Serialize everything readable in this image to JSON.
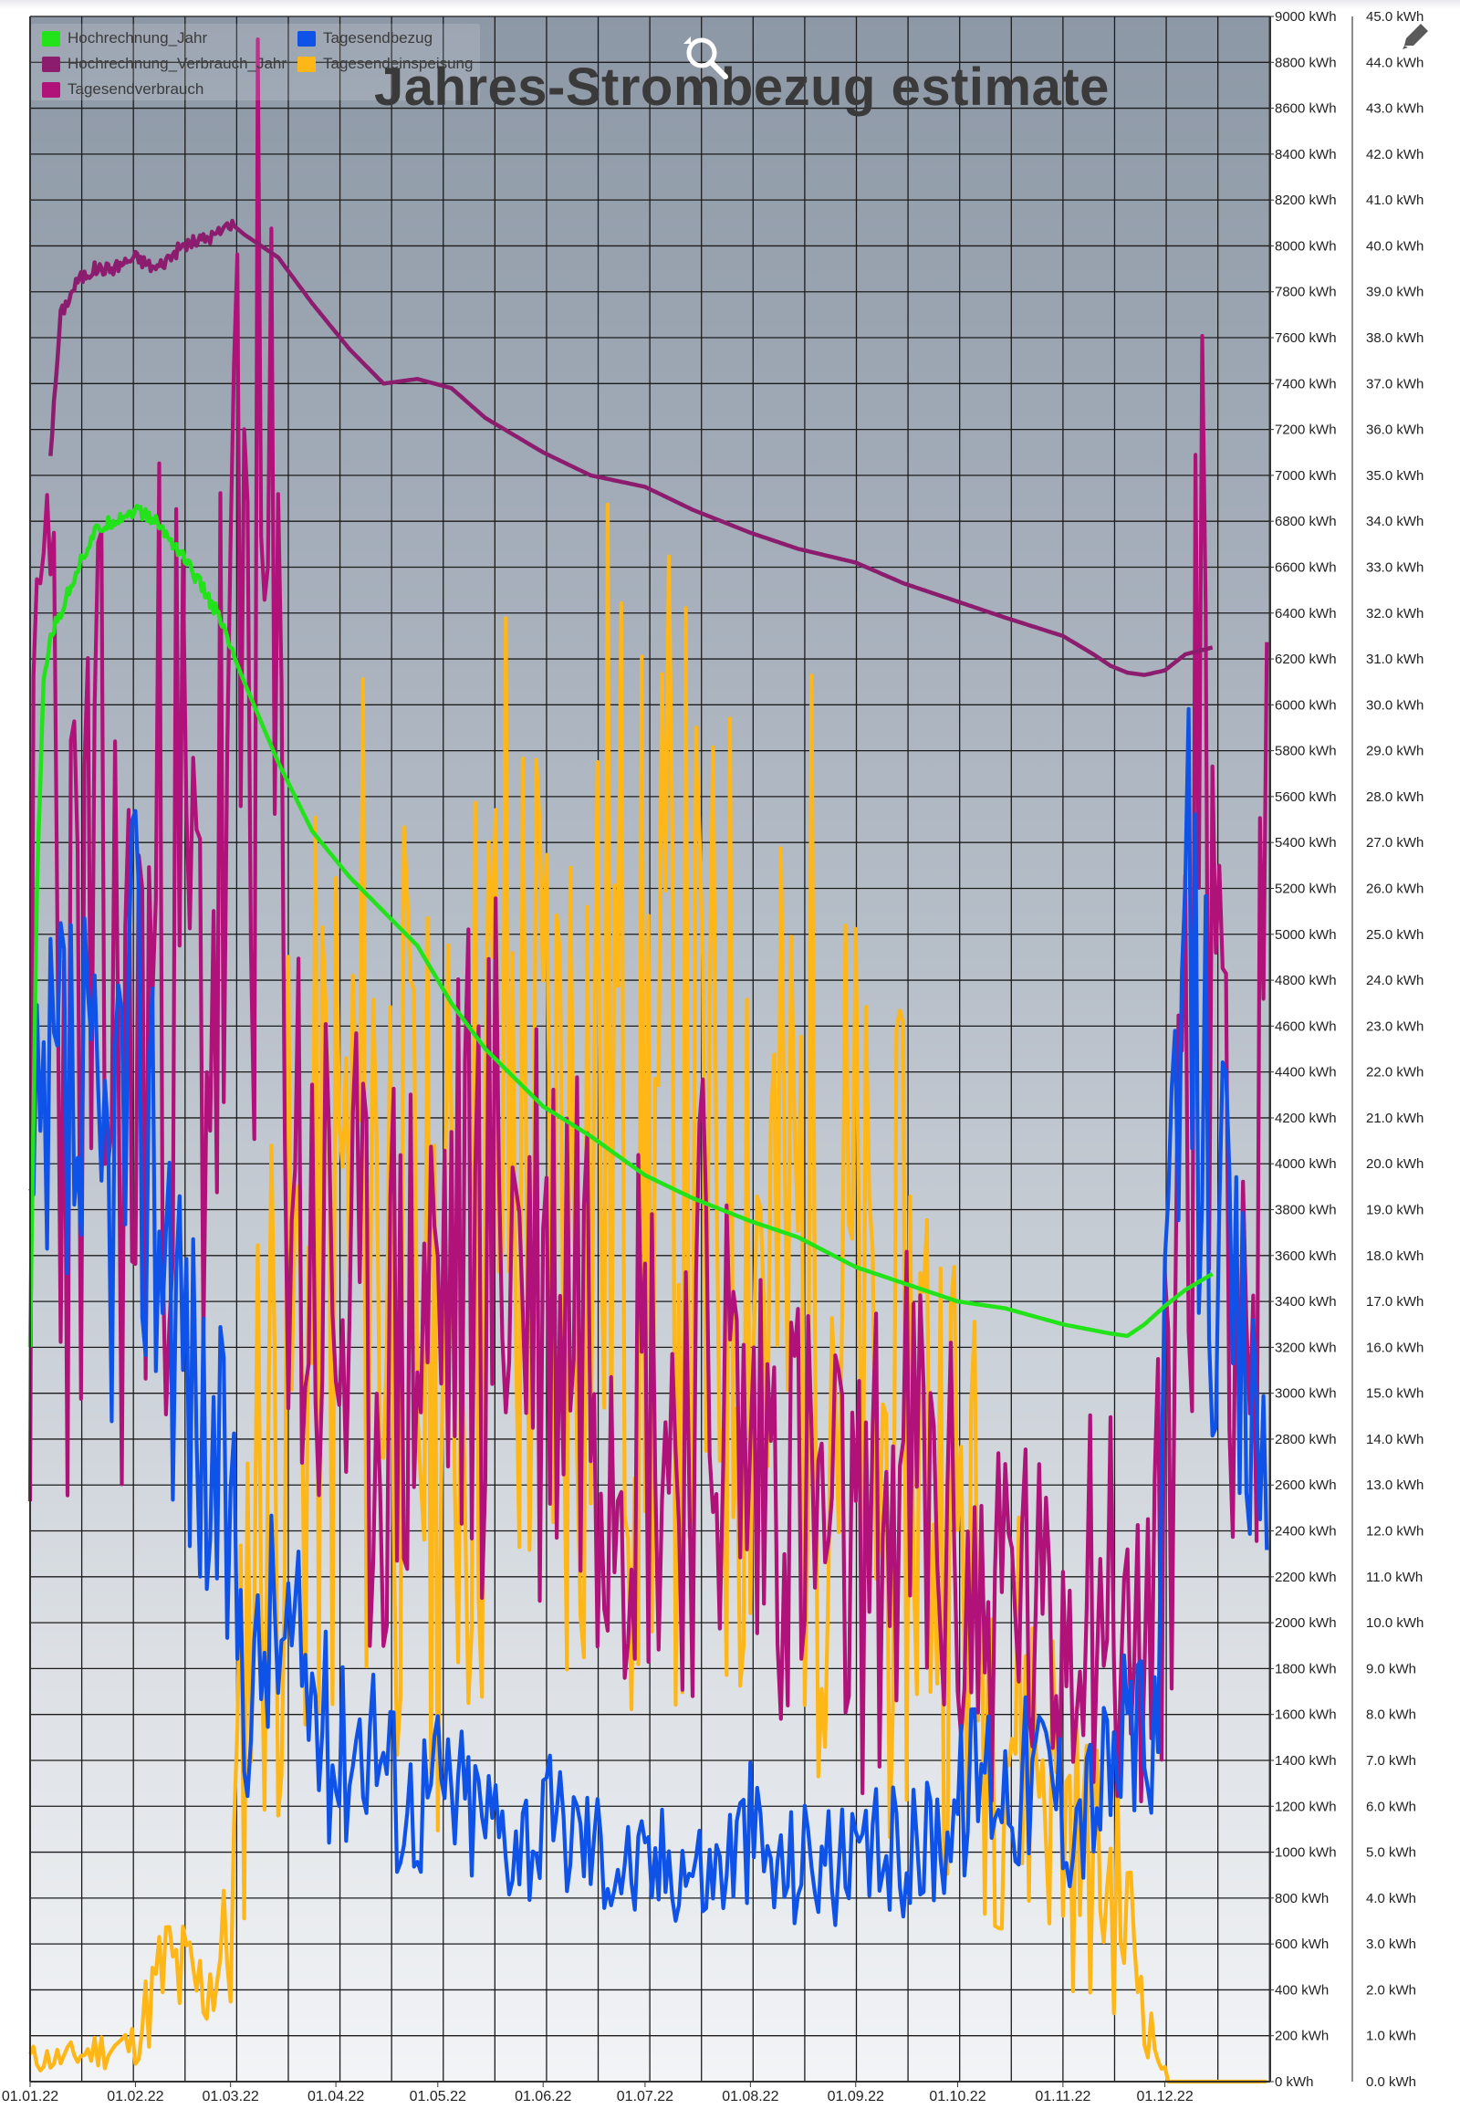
{
  "chart_data": {
    "type": "line",
    "title": "Jahres-Strombezug estimate",
    "x_ticks": [
      "01.01.22",
      "01.02.22",
      "01.03.22",
      "01.04.22",
      "01.05.22",
      "01.06.22",
      "01.07.22",
      "01.08.22",
      "01.09.22",
      "01.10.22",
      "01.11.22",
      "01.12.22"
    ],
    "x_range_days": [
      0,
      365
    ],
    "y_left_ticks": [
      "0 kWh",
      "200 kWh",
      "400 kWh",
      "600 kWh",
      "800 kWh",
      "1000 kWh",
      "1200 kWh",
      "1400 kWh",
      "1600 kWh",
      "1800 kWh",
      "2000 kWh",
      "2200 kWh",
      "2400 kWh",
      "2600 kWh",
      "2800 kWh",
      "3000 kWh",
      "3200 kWh",
      "3400 kWh",
      "3600 kWh",
      "3800 kWh",
      "4000 kWh",
      "4200 kWh",
      "4400 kWh",
      "4600 kWh",
      "4800 kWh",
      "5000 kWh",
      "5200 kWh",
      "5400 kWh",
      "5600 kWh",
      "5800 kWh",
      "6000 kWh",
      "6200 kWh",
      "6400 kWh",
      "6600 kWh",
      "6800 kWh",
      "7000 kWh",
      "7200 kWh",
      "7400 kWh",
      "7600 kWh",
      "7800 kWh",
      "8000 kWh",
      "8200 kWh",
      "8400 kWh",
      "8600 kWh",
      "8800 kWh",
      "9000 kWh"
    ],
    "y_right_ticks": [
      "0.0 kWh",
      "1.0 kWh",
      "2.0 kWh",
      "3.0 kWh",
      "4.0 kWh",
      "5.0 kWh",
      "6.0 kWh",
      "7.0 kWh",
      "8.0 kWh",
      "9.0 kWh",
      "10.0 kWh",
      "11.0 kWh",
      "12.0 kWh",
      "13.0 kWh",
      "14.0 kWh",
      "15.0 kWh",
      "16.0 kWh",
      "17.0 kWh",
      "18.0 kWh",
      "19.0 kWh",
      "20.0 kWh",
      "21.0 kWh",
      "22.0 kWh",
      "23.0 kWh",
      "24.0 kWh",
      "25.0 kWh",
      "26.0 kWh",
      "27.0 kWh",
      "28.0 kWh",
      "29.0 kWh",
      "30.0 kWh",
      "31.0 kWh",
      "32.0 kWh",
      "33.0 kWh",
      "34.0 kWh",
      "35.0 kWh",
      "36.0 kWh",
      "37.0 kWh",
      "38.0 kWh",
      "39.0 kWh",
      "40.0 kWh",
      "41.0 kWh",
      "42.0 kWh",
      "43.0 kWh",
      "44.0 kWh",
      "45.0 kWh"
    ],
    "y_left_range": [
      0,
      9000
    ],
    "y_right_range": [
      0,
      45
    ],
    "grid": true,
    "legend_position": "top-left",
    "series": [
      {
        "name": "Hochrechnung_Jahr",
        "color": "#22e31a",
        "axis": "left",
        "x": [
          "01.01.22",
          "03.01.22",
          "05.01.22",
          "07.01.22",
          "10.01.22",
          "15.01.22",
          "20.01.22",
          "25.01.22",
          "01.02.22",
          "07.02.22",
          "15.02.22",
          "25.02.22",
          "05.03.22",
          "15.03.22",
          "25.03.22",
          "05.04.22",
          "15.04.22",
          "25.04.22",
          "05.05.22",
          "15.05.22",
          "01.06.22",
          "15.06.22",
          "01.07.22",
          "15.07.22",
          "01.08.22",
          "15.08.22",
          "01.09.22",
          "15.09.22",
          "01.10.22",
          "15.10.22",
          "01.11.22",
          "15.11.22",
          "20.11.22",
          "25.11.22",
          "01.12.22",
          "07.12.22",
          "15.12.22"
        ],
        "y": [
          3200,
          5200,
          6100,
          6300,
          6400,
          6600,
          6750,
          6800,
          6850,
          6800,
          6650,
          6400,
          6100,
          5750,
          5450,
          5250,
          5100,
          4950,
          4700,
          4500,
          4250,
          4120,
          3950,
          3850,
          3750,
          3680,
          3550,
          3480,
          3400,
          3370,
          3300,
          3260,
          3250,
          3300,
          3380,
          3450,
          3520
        ]
      },
      {
        "name": "Hochrechnung_Verbrauch_Jahr",
        "color": "#8c1d6e",
        "axis": "left",
        "x": [
          "07.01.22",
          "10.01.22",
          "15.01.22",
          "20.01.22",
          "25.01.22",
          "01.02.22",
          "07.02.22",
          "15.02.22",
          "25.02.22",
          "01.03.22",
          "05.03.22",
          "15.03.22",
          "25.03.22",
          "05.04.22",
          "15.04.22",
          "25.04.22",
          "05.05.22",
          "15.05.22",
          "01.06.22",
          "15.06.22",
          "01.07.22",
          "15.07.22",
          "01.08.22",
          "15.08.22",
          "01.09.22",
          "15.09.22",
          "01.10.22",
          "15.10.22",
          "01.11.22",
          "10.11.22",
          "15.11.22",
          "20.11.22",
          "25.11.22",
          "01.12.22",
          "07.12.22",
          "15.12.22"
        ],
        "y": [
          7100,
          7700,
          7850,
          7900,
          7900,
          7950,
          7900,
          8000,
          8050,
          8100,
          8050,
          7950,
          7750,
          7550,
          7400,
          7420,
          7380,
          7250,
          7100,
          7000,
          6950,
          6850,
          6750,
          6680,
          6620,
          6530,
          6450,
          6380,
          6300,
          6220,
          6170,
          6140,
          6130,
          6150,
          6220,
          6250
        ]
      },
      {
        "name": "Tagesendbezug",
        "color": "#0f52e8",
        "axis": "right"
      },
      {
        "name": "Tagesendeinspeisung",
        "color": "#ffb617",
        "axis": "right"
      },
      {
        "name": "Tagesendverbrauch",
        "color": "#b0127a",
        "axis": "right"
      }
    ],
    "daily_keypoints": {
      "Tagesendbezug": {
        "x_days": [
          0,
          10,
          20,
          30,
          40,
          50,
          59,
          65,
          70,
          80,
          90,
          100,
          110,
          120,
          130,
          140,
          151,
          160,
          170,
          181,
          190,
          200,
          212,
          220,
          230,
          243,
          250,
          260,
          273,
          280,
          290,
          300,
          304,
          310,
          320,
          325,
          330,
          335,
          340,
          345,
          350,
          355,
          360,
          365
        ],
        "y": [
          17.5,
          21,
          19,
          22,
          19,
          14,
          12,
          8,
          10,
          9,
          7,
          8,
          6,
          6.5,
          6,
          5.5,
          5.5,
          5.5,
          5,
          4.5,
          5,
          4.5,
          5.5,
          4.5,
          5,
          4.5,
          5,
          5,
          6,
          7,
          6.5,
          7,
          6,
          6,
          7,
          8,
          6,
          16,
          24,
          22,
          18,
          16,
          14,
          15
        ]
      },
      "Tagesendeinspeisung": {
        "x_days": [
          0,
          10,
          20,
          30,
          40,
          50,
          59,
          65,
          70,
          80,
          90,
          100,
          110,
          120,
          130,
          140,
          151,
          160,
          170,
          181,
          190,
          200,
          212,
          220,
          230,
          243,
          250,
          260,
          273,
          280,
          290,
          300,
          304,
          310,
          320,
          325,
          330,
          335,
          340,
          345,
          350,
          355,
          360,
          365
        ],
        "y": [
          0.5,
          0.5,
          0.7,
          0.8,
          2.5,
          2,
          3,
          12,
          14,
          16,
          18,
          20,
          17,
          15,
          18,
          21,
          19,
          20,
          22,
          19,
          21,
          18,
          20,
          17,
          19,
          16,
          13,
          15,
          12,
          10,
          8,
          7,
          6,
          5,
          4,
          3,
          1,
          0,
          0,
          0,
          0,
          0,
          0,
          0
        ]
      },
      "Tagesendverbrauch": {
        "x_days": [
          0,
          5,
          10,
          20,
          30,
          40,
          50,
          59,
          65,
          70,
          80,
          90,
          100,
          110,
          120,
          130,
          140,
          151,
          160,
          170,
          181,
          190,
          200,
          212,
          220,
          230,
          243,
          250,
          260,
          273,
          280,
          290,
          300,
          304,
          310,
          320,
          325,
          330,
          335,
          340,
          345,
          350,
          355,
          360,
          365
        ],
        "y": [
          19,
          34,
          22,
          24,
          21,
          26,
          23,
          27,
          34,
          30,
          18,
          17,
          15,
          16,
          17,
          18,
          19,
          17,
          18,
          16,
          15,
          14,
          16,
          13,
          14,
          12,
          11,
          12,
          13,
          11,
          10,
          11,
          9,
          10,
          12,
          10,
          9,
          10,
          13,
          24,
          28,
          26,
          20,
          15,
          26
        ]
      }
    }
  },
  "legend": {
    "items": [
      {
        "label": "Hochrechnung_Jahr",
        "color": "#22e31a"
      },
      {
        "label": "Tagesendbezug",
        "color": "#0f52e8"
      },
      {
        "label": "Hochrechnung_Verbrauch_Jahr",
        "color": "#8c1d6e"
      },
      {
        "label": "Tagesendeinspeisung",
        "color": "#ffb617"
      },
      {
        "label": "Tagesendverbrauch",
        "color": "#b0127a"
      }
    ]
  },
  "icons": {
    "zoom_reset": "zoom-reset-icon",
    "edit": "edit-pencil-icon"
  }
}
